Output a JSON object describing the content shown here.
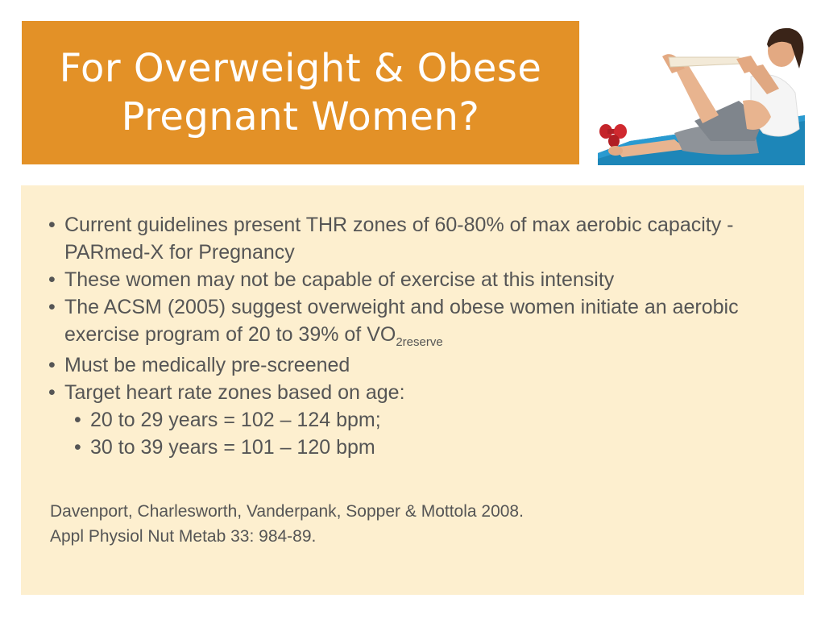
{
  "slide": {
    "title_line1": "For Overweight & Obese",
    "title_line2": "Pregnant Women?",
    "title_bg_color": "#e39127",
    "content_bg_color": "#fdefcf"
  },
  "image": {
    "icon": "pregnant-woman-exercise-photo"
  },
  "bullets": [
    {
      "text": "Current guidelines present THR zones of 60-80% of max aerobic capacity -PARmed-X for Pregnancy"
    },
    {
      "text": "These women may not be capable of exercise at this intensity"
    },
    {
      "text_main": "The ACSM (2005) suggest overweight and obese women initiate an aerobic exercise program of 20 to 39% of VO",
      "text_sub": "2reserve"
    },
    {
      "text": "Must be medically pre-screened"
    },
    {
      "text": "Target heart rate zones based on age:"
    },
    {
      "text": "20 to 29 years = 102 – 124 bpm;",
      "level": 2
    },
    {
      "text": "30 to 39 years = 101 – 120 bpm",
      "level": 2
    }
  ],
  "citation": {
    "line1": "Davenport, Charlesworth, Vanderpank, Sopper & Mottola 2008.",
    "line2": "Appl Physiol Nut Metab 33: 984-89."
  }
}
